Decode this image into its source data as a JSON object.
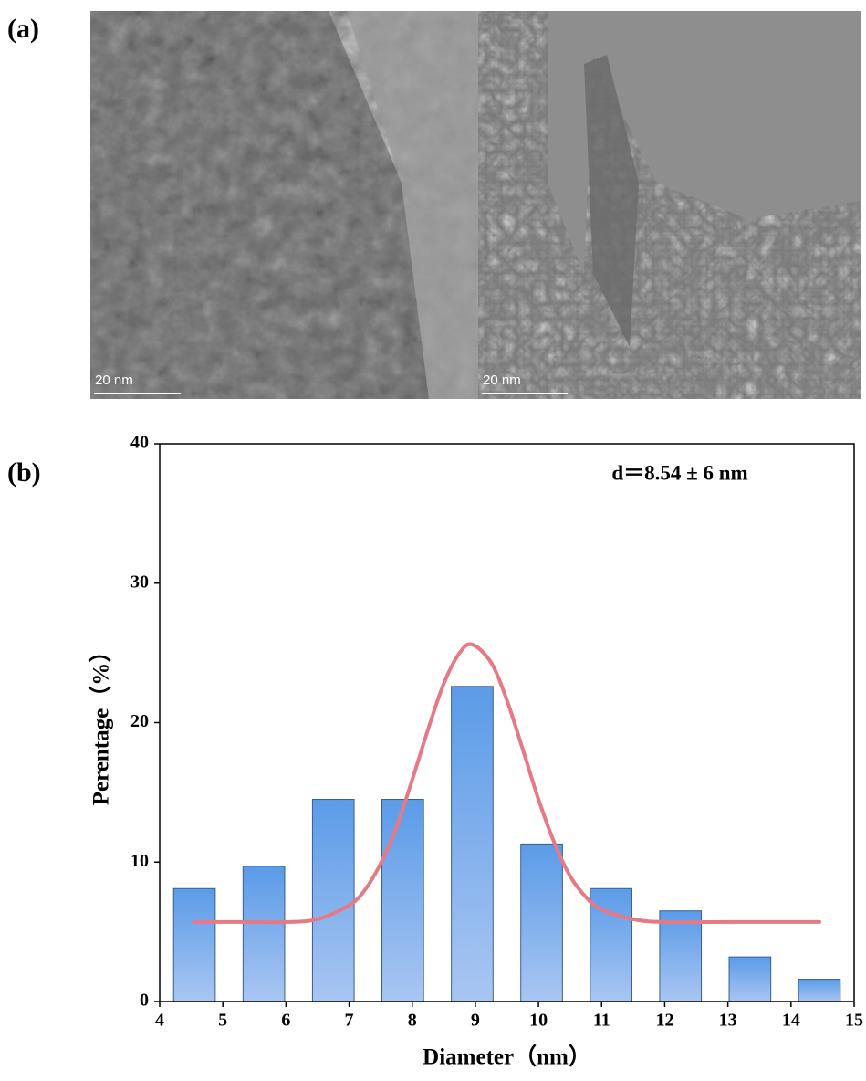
{
  "panels": {
    "a": "(a)",
    "b": "(b)"
  },
  "images": [
    {
      "scale_bar": "20 nm"
    },
    {
      "scale_bar": "20 nm"
    }
  ],
  "chart_data": {
    "type": "bar",
    "annotation": "d＝8.54 ± 6 nm",
    "xlabel": "Diameter（nm）",
    "ylabel": "Perentage（%）",
    "xlim": [
      4,
      15
    ],
    "ylim": [
      0,
      40
    ],
    "xticks": [
      4,
      5,
      6,
      7,
      8,
      9,
      10,
      11,
      12,
      13,
      14,
      15
    ],
    "yticks": [
      0,
      10,
      20,
      30,
      40
    ],
    "x": [
      4.55,
      5.65,
      6.75,
      7.85,
      8.95,
      10.05,
      11.15,
      12.25,
      13.35,
      14.45
    ],
    "values": [
      8.1,
      9.7,
      14.5,
      14.5,
      22.6,
      11.3,
      8.1,
      6.5,
      3.2,
      1.6
    ],
    "color": "#639ee6",
    "fit": {
      "type": "line",
      "color": "#e57a85",
      "x": [
        4.55,
        5.5,
        6.0,
        6.5,
        7.0,
        7.25,
        7.5,
        7.75,
        8.0,
        8.25,
        8.5,
        8.75,
        8.95,
        9.25,
        9.5,
        9.75,
        10.0,
        10.25,
        10.5,
        10.75,
        11.0,
        11.5,
        12.0,
        13.0,
        14.45
      ],
      "values": [
        5.7,
        5.7,
        5.7,
        5.9,
        6.9,
        8.0,
        9.9,
        12.5,
        15.9,
        19.5,
        22.8,
        25.0,
        25.6,
        24.3,
        21.6,
        18.1,
        14.5,
        11.4,
        9.0,
        7.5,
        6.6,
        5.9,
        5.7,
        5.7,
        5.7
      ]
    }
  }
}
